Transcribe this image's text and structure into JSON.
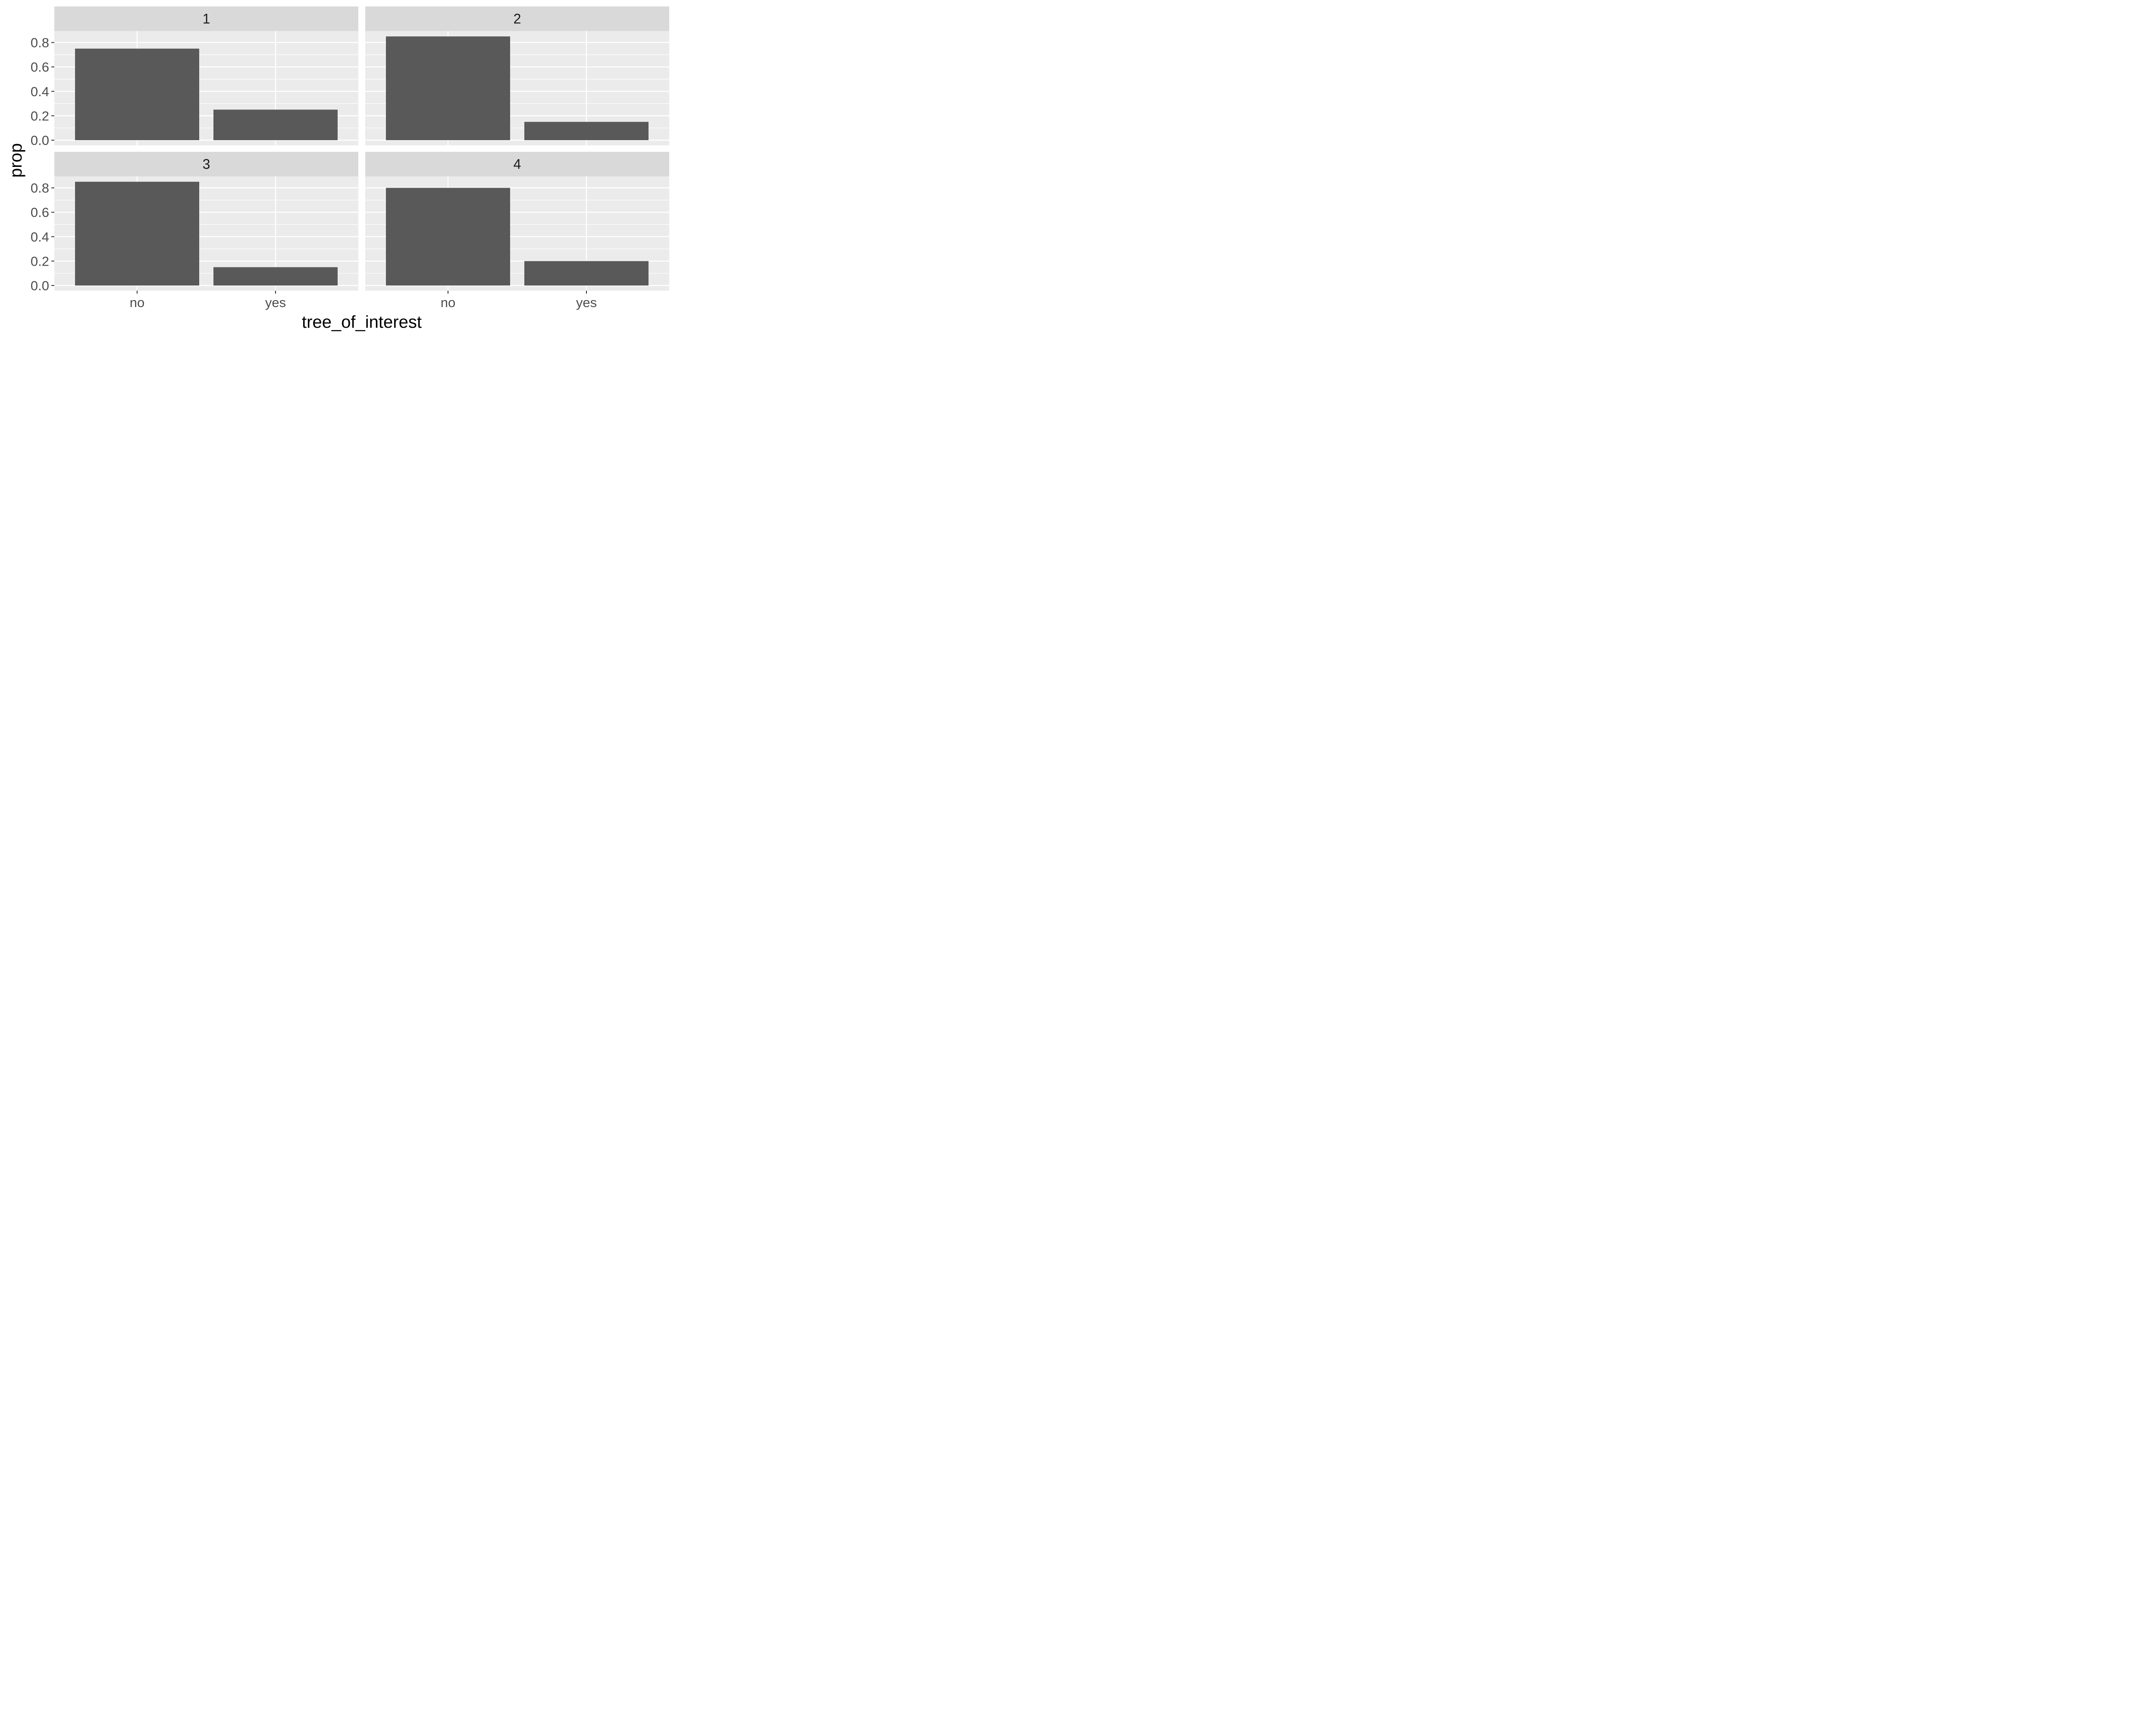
{
  "chart_data": {
    "type": "bar",
    "facet_variable_values": [
      "1",
      "2",
      "3",
      "4"
    ],
    "xlabel": "tree_of_interest",
    "ylabel": "prop",
    "categories": [
      "no",
      "yes"
    ],
    "ylim": [
      0,
      0.9
    ],
    "y_ticks": [
      0.0,
      0.2,
      0.4,
      0.6,
      0.8
    ],
    "y_tick_labels": [
      "0.0",
      "0.2",
      "0.4",
      "0.6",
      "0.8"
    ],
    "facets": [
      {
        "label": "1",
        "values": [
          0.75,
          0.25
        ]
      },
      {
        "label": "2",
        "values": [
          0.85,
          0.15
        ]
      },
      {
        "label": "3",
        "values": [
          0.85,
          0.15
        ]
      },
      {
        "label": "4",
        "values": [
          0.8,
          0.2
        ]
      }
    ],
    "grid": true,
    "colors": {
      "panel_background": "#ebebeb",
      "strip_background": "#d9d9d9",
      "bar_fill": "#595959",
      "grid_line": "#ffffff"
    }
  }
}
